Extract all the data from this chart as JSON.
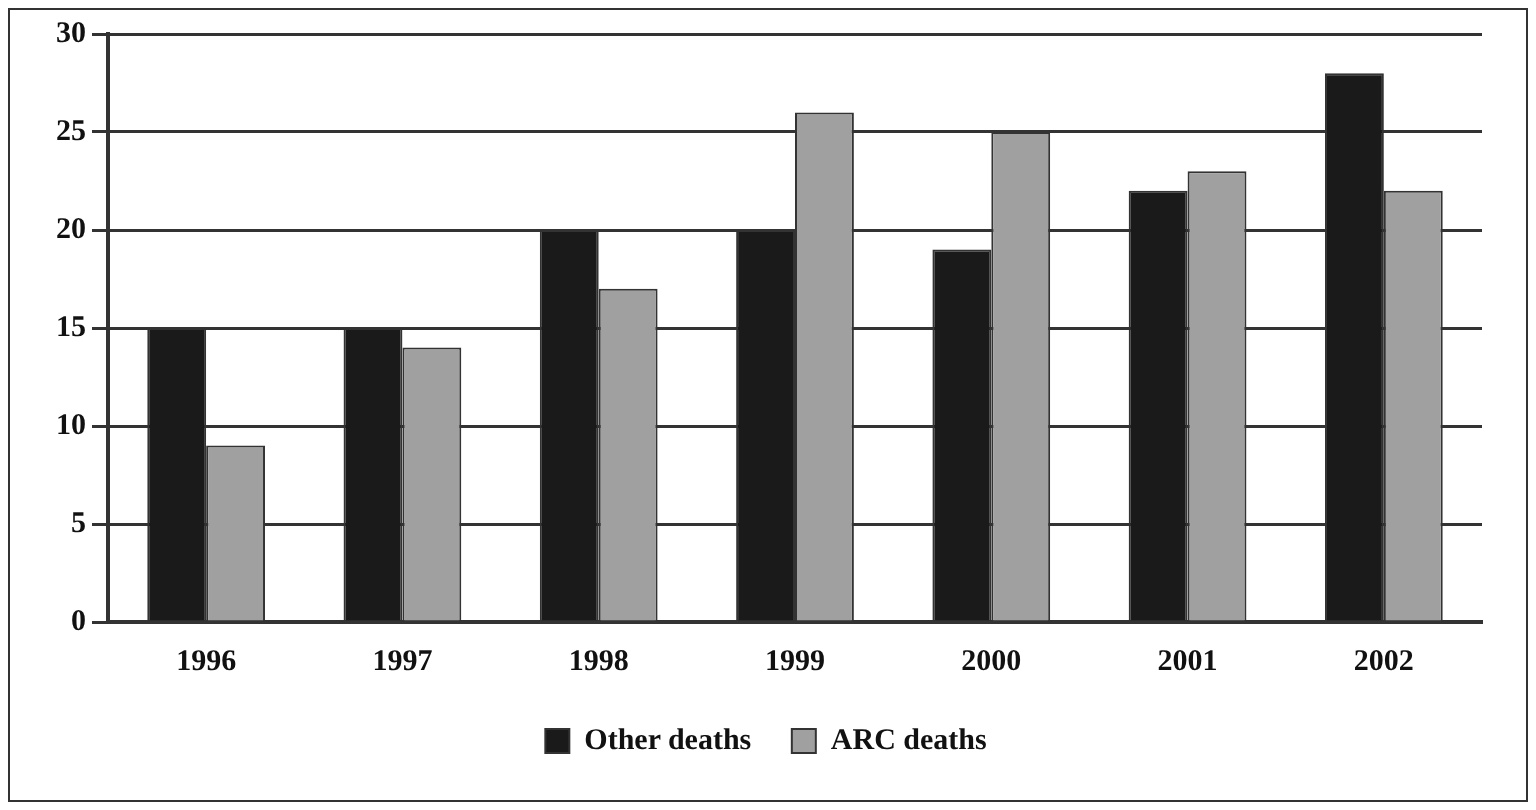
{
  "chart_data": {
    "type": "bar",
    "categories": [
      "1996",
      "1997",
      "1998",
      "1999",
      "2000",
      "2001",
      "2002"
    ],
    "series": [
      {
        "name": "Other deaths",
        "color": "#1a1a1a",
        "values": [
          15,
          15,
          20,
          20,
          19,
          22,
          28
        ]
      },
      {
        "name": "ARC deaths",
        "color": "#a0a0a0",
        "values": [
          9,
          14,
          17,
          26,
          25,
          23,
          22
        ]
      }
    ],
    "ylim": [
      0,
      30
    ],
    "yticks": [
      0,
      5,
      10,
      15,
      20,
      25,
      30
    ],
    "grid": "y",
    "legend": "bottom"
  }
}
